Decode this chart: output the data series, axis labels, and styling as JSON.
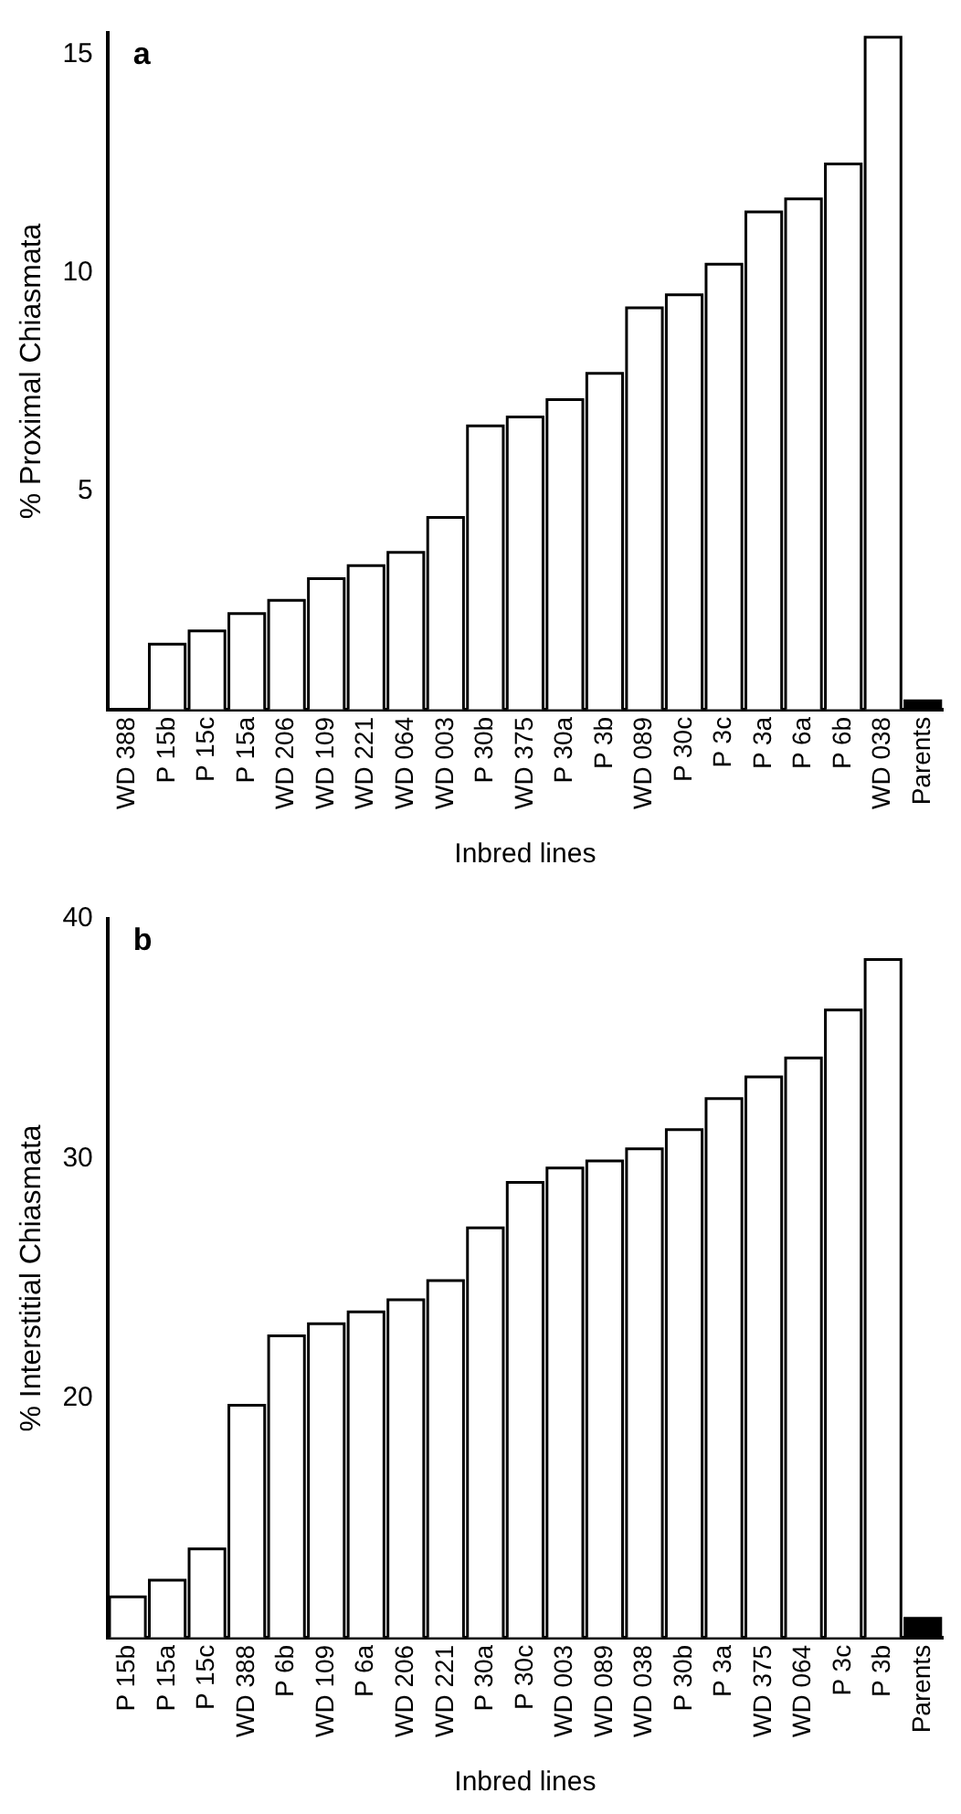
{
  "chart_data": [
    {
      "type": "bar",
      "ylabel": "% Proximal Chiasmata",
      "xlabel": "Inbred lines",
      "annotations": [
        "a"
      ],
      "categories": [
        "WD 388",
        "P 15b",
        "P 15c",
        "P 15a",
        "WD 206",
        "WD 109",
        "WD 221",
        "WD 064",
        "WD 003",
        "P 30b",
        "WD 375",
        "P 30a",
        "P 3b",
        "WD 089",
        "P 30c",
        "P 3c",
        "P 3a",
        "P 6a",
        "P 6b",
        "WD 038",
        "Parents"
      ],
      "values": [
        0,
        1.5,
        1.8,
        2.2,
        2.5,
        3.0,
        3.3,
        3.6,
        4.4,
        6.5,
        6.7,
        7.1,
        7.7,
        9.2,
        9.5,
        10.2,
        11.4,
        11.7,
        12.5,
        15.4,
        0.2
      ],
      "colors": [
        "#ffffff",
        "#ffffff",
        "#ffffff",
        "#ffffff",
        "#ffffff",
        "#ffffff",
        "#ffffff",
        "#ffffff",
        "#ffffff",
        "#ffffff",
        "#ffffff",
        "#ffffff",
        "#ffffff",
        "#ffffff",
        "#ffffff",
        "#ffffff",
        "#ffffff",
        "#ffffff",
        "#ffffff",
        "#ffffff",
        "#000000"
      ],
      "ylim": [
        0,
        15.5
      ],
      "yticks": [
        5,
        10,
        15
      ],
      "grid": false,
      "legend": false
    },
    {
      "type": "bar",
      "ylabel": "% Interstitial Chiasmata",
      "xlabel": "Inbred lines",
      "annotations": [
        "b"
      ],
      "categories": [
        "P 15b",
        "P 15a",
        "P 15c",
        "WD 388",
        "P 6b",
        "WD 109",
        "P 6a",
        "WD 206",
        "WD 221",
        "P 30a",
        "P 30c",
        "WD 003",
        "WD 089",
        "WD 038",
        "P 30b",
        "P 3a",
        "WD 375",
        "WD 064",
        "P 3c",
        "P 3b",
        "Parents"
      ],
      "values": [
        11.7,
        12.4,
        13.7,
        19.7,
        22.6,
        23.1,
        23.6,
        24.1,
        24.9,
        27.1,
        29.0,
        29.6,
        29.9,
        30.4,
        31.2,
        32.5,
        33.4,
        34.2,
        36.2,
        38.3,
        10.8
      ],
      "colors": [
        "#ffffff",
        "#ffffff",
        "#ffffff",
        "#ffffff",
        "#ffffff",
        "#ffffff",
        "#ffffff",
        "#ffffff",
        "#ffffff",
        "#ffffff",
        "#ffffff",
        "#ffffff",
        "#ffffff",
        "#ffffff",
        "#ffffff",
        "#ffffff",
        "#ffffff",
        "#ffffff",
        "#ffffff",
        "#ffffff",
        "#000000"
      ],
      "ylim": [
        10,
        40
      ],
      "yticks": [
        20,
        30,
        40
      ],
      "grid": false,
      "legend": false
    }
  ]
}
